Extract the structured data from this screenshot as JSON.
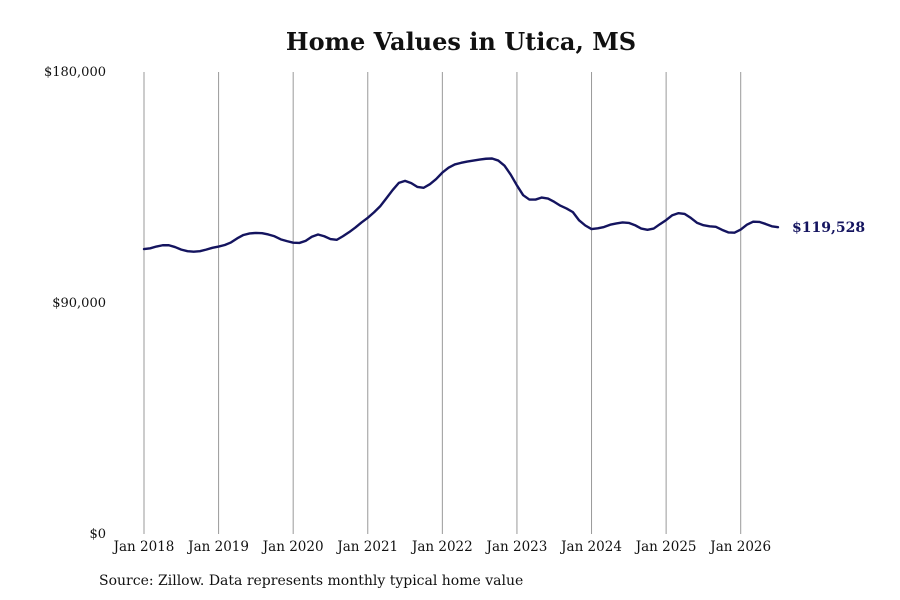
{
  "chart_data": {
    "type": "line",
    "title": "Home Values in Utica, MS",
    "source": "Source: Zillow. Data represents monthly typical home value",
    "xlabel": "",
    "ylabel": "",
    "ylim": [
      0,
      180000
    ],
    "xlim": [
      "2018-01",
      "2026-09"
    ],
    "y_ticks": [
      {
        "value": 0,
        "label": "$0"
      },
      {
        "value": 90000,
        "label": "$90,000"
      },
      {
        "value": 180000,
        "label": "$180,000"
      }
    ],
    "x_ticks": [
      {
        "value": "2018-01",
        "label": "Jan 2018"
      },
      {
        "value": "2019-01",
        "label": "Jan 2019"
      },
      {
        "value": "2020-01",
        "label": "Jan 2020"
      },
      {
        "value": "2021-01",
        "label": "Jan 2021"
      },
      {
        "value": "2022-01",
        "label": "Jan 2022"
      },
      {
        "value": "2023-01",
        "label": "Jan 2023"
      },
      {
        "value": "2024-01",
        "label": "Jan 2024"
      },
      {
        "value": "2025-01",
        "label": "Jan 2025"
      },
      {
        "value": "2026-01",
        "label": "Jan 2026"
      }
    ],
    "grid": {
      "vertical": true,
      "horizontal": false
    },
    "line_color": "#14145f",
    "end_label": "$119,528",
    "series": [
      {
        "points": [
          [
            "2018-01",
            111000
          ],
          [
            "2018-02",
            111300
          ],
          [
            "2018-03",
            112000
          ],
          [
            "2018-04",
            112500
          ],
          [
            "2018-05",
            112500
          ],
          [
            "2018-06",
            111800
          ],
          [
            "2018-07",
            110800
          ],
          [
            "2018-08",
            110200
          ],
          [
            "2018-09",
            110000
          ],
          [
            "2018-10",
            110200
          ],
          [
            "2018-11",
            110800
          ],
          [
            "2018-12",
            111500
          ],
          [
            "2019-01",
            112000
          ],
          [
            "2019-02",
            112600
          ],
          [
            "2019-03",
            113600
          ],
          [
            "2019-04",
            115200
          ],
          [
            "2019-05",
            116500
          ],
          [
            "2019-06",
            117100
          ],
          [
            "2019-07",
            117300
          ],
          [
            "2019-08",
            117200
          ],
          [
            "2019-09",
            116700
          ],
          [
            "2019-10",
            116000
          ],
          [
            "2019-11",
            114800
          ],
          [
            "2019-12",
            114100
          ],
          [
            "2020-01",
            113500
          ],
          [
            "2020-02",
            113400
          ],
          [
            "2020-03",
            114200
          ],
          [
            "2020-04",
            115800
          ],
          [
            "2020-05",
            116700
          ],
          [
            "2020-06",
            116000
          ],
          [
            "2020-07",
            114900
          ],
          [
            "2020-08",
            114600
          ],
          [
            "2020-09",
            116000
          ],
          [
            "2020-10",
            117600
          ],
          [
            "2020-11",
            119400
          ],
          [
            "2020-12",
            121400
          ],
          [
            "2021-01",
            123200
          ],
          [
            "2021-02",
            125300
          ],
          [
            "2021-03",
            127700
          ],
          [
            "2021-04",
            130800
          ],
          [
            "2021-05",
            134000
          ],
          [
            "2021-06",
            136800
          ],
          [
            "2021-07",
            137600
          ],
          [
            "2021-08",
            136700
          ],
          [
            "2021-09",
            135200
          ],
          [
            "2021-10",
            134900
          ],
          [
            "2021-11",
            136300
          ],
          [
            "2021-12",
            138300
          ],
          [
            "2022-01",
            140800
          ],
          [
            "2022-02",
            142700
          ],
          [
            "2022-03",
            144000
          ],
          [
            "2022-04",
            144600
          ],
          [
            "2022-05",
            145100
          ],
          [
            "2022-06",
            145500
          ],
          [
            "2022-07",
            145900
          ],
          [
            "2022-08",
            146200
          ],
          [
            "2022-09",
            146300
          ],
          [
            "2022-10",
            145500
          ],
          [
            "2022-11",
            143500
          ],
          [
            "2022-12",
            140000
          ],
          [
            "2023-01",
            135800
          ],
          [
            "2023-02",
            132000
          ],
          [
            "2023-03",
            130300
          ],
          [
            "2023-04",
            130300
          ],
          [
            "2023-05",
            131100
          ],
          [
            "2023-06",
            130700
          ],
          [
            "2023-07",
            129400
          ],
          [
            "2023-08",
            127900
          ],
          [
            "2023-09",
            126800
          ],
          [
            "2023-10",
            125400
          ],
          [
            "2023-11",
            122200
          ],
          [
            "2023-12",
            120200
          ],
          [
            "2024-01",
            118800
          ],
          [
            "2024-02",
            119100
          ],
          [
            "2024-03",
            119600
          ],
          [
            "2024-04",
            120500
          ],
          [
            "2024-05",
            121000
          ],
          [
            "2024-06",
            121400
          ],
          [
            "2024-07",
            121200
          ],
          [
            "2024-08",
            120300
          ],
          [
            "2024-09",
            119000
          ],
          [
            "2024-10",
            118500
          ],
          [
            "2024-11",
            119000
          ],
          [
            "2024-12",
            120700
          ],
          [
            "2025-01",
            122300
          ],
          [
            "2025-02",
            124200
          ],
          [
            "2025-03",
            125000
          ],
          [
            "2025-04",
            124700
          ],
          [
            "2025-05",
            123100
          ],
          [
            "2025-06",
            121200
          ],
          [
            "2025-07",
            120300
          ],
          [
            "2025-08",
            119900
          ],
          [
            "2025-09",
            119700
          ],
          [
            "2025-10",
            118500
          ],
          [
            "2025-11",
            117500
          ],
          [
            "2025-12",
            117400
          ],
          [
            "2026-01",
            118600
          ],
          [
            "2026-02",
            120500
          ],
          [
            "2026-03",
            121700
          ],
          [
            "2026-04",
            121600
          ],
          [
            "2026-05",
            120800
          ],
          [
            "2026-06",
            119900
          ],
          [
            "2026-07",
            119528
          ]
        ]
      }
    ]
  }
}
